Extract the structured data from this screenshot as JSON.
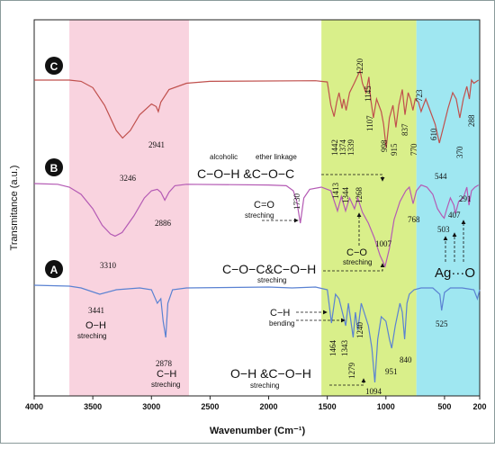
{
  "chart_data": {
    "type": "line",
    "xlabel": "Wavenumber (Cm⁻¹)",
    "ylabel": "Transmitance (a.u.)",
    "xlim": [
      4000,
      200
    ],
    "x_reversed": true,
    "x_ticks": [
      "4000",
      "3500",
      "3000",
      "2500",
      "2000",
      "1500",
      "1000",
      "500",
      "200"
    ],
    "x_tick_values": [
      4000,
      3500,
      3000,
      2500,
      2000,
      1500,
      1000,
      500,
      200
    ],
    "bands": [
      {
        "from": 3700,
        "to": 2680,
        "color": "#f9d3df"
      },
      {
        "from": 1550,
        "to": 740,
        "color": "#d9ef8a"
      },
      {
        "from": 740,
        "to": 200,
        "color": "#9fe7f1"
      }
    ],
    "series": [
      {
        "name": "C",
        "color": "#c0504d",
        "points": [
          [
            4000,
            0.0
          ],
          [
            3700,
            0.0
          ],
          [
            3600,
            -2
          ],
          [
            3500,
            -12
          ],
          [
            3400,
            -40
          ],
          [
            3300,
            -80
          ],
          [
            3246,
            -92
          ],
          [
            3180,
            -80
          ],
          [
            3100,
            -55
          ],
          [
            3000,
            -38
          ],
          [
            2960,
            -42
          ],
          [
            2941,
            -50
          ],
          [
            2920,
            -35
          ],
          [
            2850,
            -15
          ],
          [
            2700,
            -5
          ],
          [
            2500,
            -2
          ],
          [
            1600,
            -1
          ],
          [
            1500,
            -3
          ],
          [
            1470,
            -40
          ],
          [
            1442,
            -58
          ],
          [
            1420,
            -35
          ],
          [
            1400,
            -20
          ],
          [
            1374,
            -45
          ],
          [
            1360,
            -30
          ],
          [
            1339,
            -48
          ],
          [
            1310,
            -20
          ],
          [
            1270,
            -5
          ],
          [
            1220,
            15
          ],
          [
            1200,
            -5
          ],
          [
            1170,
            -20
          ],
          [
            1145,
            5
          ],
          [
            1130,
            -30
          ],
          [
            1107,
            -60
          ],
          [
            1080,
            -30
          ],
          [
            1040,
            -50
          ],
          [
            1020,
            -70
          ],
          [
            998,
            -108
          ],
          [
            970,
            -60
          ],
          [
            940,
            -40
          ],
          [
            915,
            -75
          ],
          [
            890,
            -40
          ],
          [
            860,
            -15
          ],
          [
            837,
            -55
          ],
          [
            810,
            -20
          ],
          [
            790,
            -30
          ],
          [
            770,
            -48
          ],
          [
            750,
            -30
          ],
          [
            723,
            -35
          ],
          [
            700,
            -50
          ],
          [
            660,
            -30
          ],
          [
            610,
            -55
          ],
          [
            580,
            -70
          ],
          [
            544,
            -100
          ],
          [
            510,
            -75
          ],
          [
            470,
            -45
          ],
          [
            430,
            -20
          ],
          [
            400,
            -30
          ],
          [
            370,
            -60
          ],
          [
            340,
            -30
          ],
          [
            310,
            -10
          ],
          [
            288,
            -30
          ],
          [
            270,
            0
          ],
          [
            250,
            -5
          ],
          [
            210,
            0
          ]
        ],
        "peaks": [
          3246,
          2941,
          1442,
          1374,
          1339,
          1220,
          1145,
          1107,
          998,
          915,
          837,
          770,
          723,
          610,
          544,
          370,
          288
        ]
      },
      {
        "name": "B",
        "color": "#b45ab4",
        "points": [
          [
            4000,
            0
          ],
          [
            3800,
            -1
          ],
          [
            3700,
            -5
          ],
          [
            3600,
            -15
          ],
          [
            3500,
            -35
          ],
          [
            3420,
            -58
          ],
          [
            3350,
            -70
          ],
          [
            3310,
            -73
          ],
          [
            3250,
            -68
          ],
          [
            3150,
            -45
          ],
          [
            3060,
            -20
          ],
          [
            3000,
            -10
          ],
          [
            2950,
            -8
          ],
          [
            2920,
            -12
          ],
          [
            2886,
            -23
          ],
          [
            2850,
            -12
          ],
          [
            2800,
            -3
          ],
          [
            2700,
            -1
          ],
          [
            2000,
            -2
          ],
          [
            1850,
            -3
          ],
          [
            1790,
            -10
          ],
          [
            1760,
            -25
          ],
          [
            1730,
            -55
          ],
          [
            1700,
            -20
          ],
          [
            1650,
            -8
          ],
          [
            1550,
            -5
          ],
          [
            1470,
            -10
          ],
          [
            1413,
            -38
          ],
          [
            1380,
            -18
          ],
          [
            1344,
            -38
          ],
          [
            1310,
            -20
          ],
          [
            1268,
            -35
          ],
          [
            1240,
            -20
          ],
          [
            1200,
            -40
          ],
          [
            1150,
            -55
          ],
          [
            1100,
            -75
          ],
          [
            1050,
            -100
          ],
          [
            1007,
            -115
          ],
          [
            970,
            -90
          ],
          [
            930,
            -50
          ],
          [
            880,
            -25
          ],
          [
            830,
            -10
          ],
          [
            800,
            -5
          ],
          [
            768,
            -28
          ],
          [
            740,
            -10
          ],
          [
            700,
            -2
          ],
          [
            650,
            -5
          ],
          [
            600,
            -15
          ],
          [
            560,
            -35
          ],
          [
            520,
            -45
          ],
          [
            503,
            -48
          ],
          [
            480,
            -35
          ],
          [
            450,
            -20
          ],
          [
            420,
            -30
          ],
          [
            407,
            -42
          ],
          [
            380,
            -25
          ],
          [
            340,
            -20
          ],
          [
            310,
            -5
          ],
          [
            291,
            -30
          ],
          [
            270,
            -10
          ],
          [
            240,
            -5
          ],
          [
            210,
            -2
          ]
        ],
        "peaks": [
          3310,
          2886,
          1730,
          1413,
          1344,
          1268,
          1007,
          768,
          503,
          407,
          291
        ]
      },
      {
        "name": "A",
        "color": "#5a82d2",
        "points": [
          [
            4000,
            0
          ],
          [
            3700,
            -1
          ],
          [
            3600,
            -3
          ],
          [
            3441,
            -10
          ],
          [
            3300,
            -5
          ],
          [
            3100,
            -3
          ],
          [
            3000,
            -5
          ],
          [
            2950,
            -20
          ],
          [
            2920,
            -15
          ],
          [
            2900,
            -40
          ],
          [
            2878,
            -58
          ],
          [
            2860,
            -20
          ],
          [
            2820,
            -5
          ],
          [
            2700,
            -3
          ],
          [
            2000,
            -2
          ],
          [
            1800,
            -3
          ],
          [
            1600,
            -2
          ],
          [
            1500,
            -5
          ],
          [
            1464,
            -42
          ],
          [
            1430,
            -10
          ],
          [
            1400,
            -15
          ],
          [
            1343,
            -45
          ],
          [
            1320,
            -20
          ],
          [
            1279,
            -58
          ],
          [
            1260,
            -30
          ],
          [
            1240,
            -50
          ],
          [
            1210,
            -20
          ],
          [
            1150,
            -45
          ],
          [
            1120,
            -70
          ],
          [
            1094,
            -108
          ],
          [
            1070,
            -60
          ],
          [
            1040,
            -35
          ],
          [
            1000,
            -40
          ],
          [
            970,
            -60
          ],
          [
            951,
            -70
          ],
          [
            920,
            -45
          ],
          [
            880,
            -20
          ],
          [
            860,
            -30
          ],
          [
            840,
            -60
          ],
          [
            820,
            -20
          ],
          [
            800,
            -10
          ],
          [
            760,
            -5
          ],
          [
            700,
            -3
          ],
          [
            600,
            -3
          ],
          [
            540,
            -10
          ],
          [
            525,
            -28
          ],
          [
            500,
            -8
          ],
          [
            450,
            -3
          ],
          [
            350,
            -3
          ],
          [
            300,
            -4
          ],
          [
            250,
            -5
          ],
          [
            220,
            -15
          ],
          [
            200,
            -5
          ]
        ],
        "peaks": [
          3441,
          2878,
          1464,
          1343,
          1279,
          1240,
          1094,
          951,
          840,
          525
        ]
      }
    ]
  },
  "labels": {
    "series_C": "C",
    "series_B": "B",
    "series_A": "A",
    "pk_C_3246": "3246",
    "pk_C_2941": "2941",
    "pk_C_1442": "1442",
    "pk_C_1374": "1374",
    "pk_C_1339": "1339",
    "pk_C_1220": "1220",
    "pk_C_1145": "1145",
    "pk_C_1107": "1107",
    "pk_C_998": "998",
    "pk_C_915": "915",
    "pk_C_837": "837",
    "pk_C_770": "770",
    "pk_C_723": "723",
    "pk_C_610": "610",
    "pk_C_544": "544",
    "pk_C_370": "370",
    "pk_C_288": "288",
    "pk_B_3310": "3310",
    "pk_B_2886": "2886",
    "pk_B_1730": "1730",
    "pk_B_1413": "1413",
    "pk_B_1344": "1344",
    "pk_B_1268": "1268",
    "pk_B_1007": "1007",
    "pk_B_768": "768",
    "pk_B_503": "503",
    "pk_B_407": "407",
    "pk_B_291": "291",
    "pk_A_3441": "3441",
    "pk_A_2878": "2878",
    "pk_A_1464": "1464",
    "pk_A_1343": "1343",
    "pk_A_1279": "1279",
    "pk_A_1240": "1240",
    "pk_A_1094": "1094",
    "pk_A_951": "951",
    "pk_A_840": "840",
    "pk_A_525": "525",
    "ann_alcoholic": "alcoholic",
    "ann_ether": "ether linkage",
    "ann_COH_COC": "C−O−H &C−O−C",
    "ann_CO_double": "C=O",
    "ann_streching_1": "streching",
    "ann_CO": "C−O",
    "ann_streching_2": "streching",
    "ann_COC_COH": "C−O−C&C−O−H",
    "ann_streching_3": "streching",
    "ann_AgO": "Ag···O",
    "ann_OH": "O−H",
    "ann_streching_4": "streching",
    "ann_CH_str": "C−H",
    "ann_streching_5": "streching",
    "ann_CH_bend": "C−H",
    "ann_bending": "bending",
    "ann_OH_COH": "O−H &C−O−H",
    "ann_streching_6": "streching"
  }
}
